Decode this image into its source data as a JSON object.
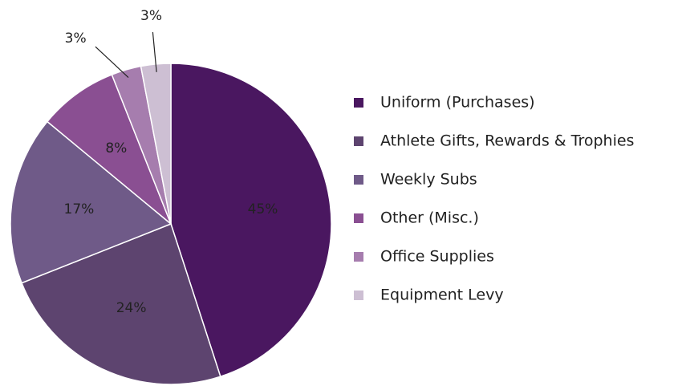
{
  "chart_data": {
    "type": "pie",
    "categories": [
      "Uniform (Purchases)",
      "Athlete Gifts, Rewards & Trophies",
      "Weekly Subs",
      "Other (Misc.)",
      "Office Supplies",
      "Equipment Levy"
    ],
    "values": [
      45,
      24,
      17,
      8,
      3,
      3
    ],
    "value_labels": [
      "45%",
      "24%",
      "17%",
      "8%",
      "3%",
      "3%"
    ],
    "colors": [
      "#4a1760",
      "#5d446f",
      "#6f5a88",
      "#8a4f92",
      "#a67dae",
      "#cdbfd3"
    ],
    "legend": "right"
  }
}
